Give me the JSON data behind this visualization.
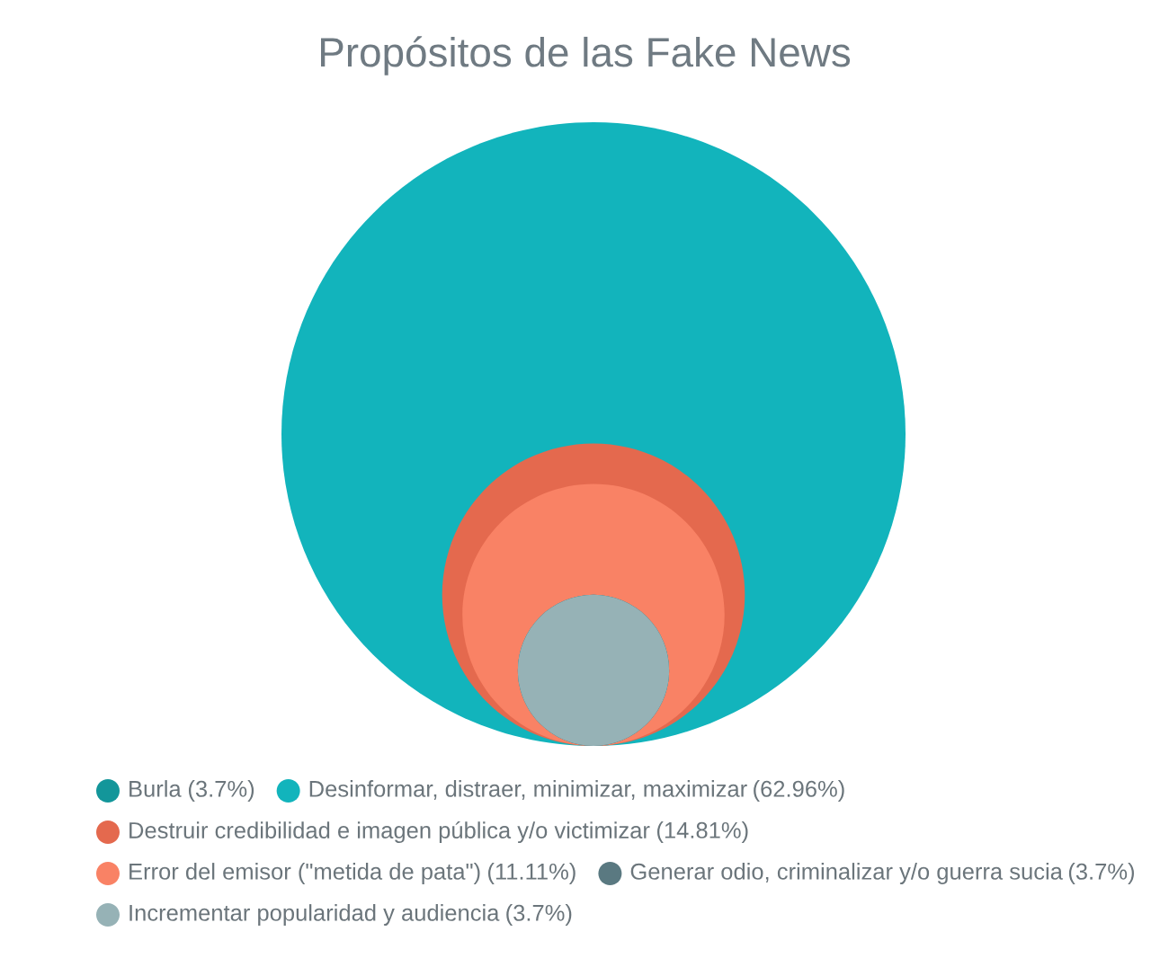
{
  "chart_data": {
    "type": "other",
    "title": "Propósitos de las Fake News",
    "series": [
      {
        "name": "Burla",
        "color": "#13969a",
        "values": [
          3.7
        ],
        "value_labels": [
          "(3.7%)"
        ]
      },
      {
        "name": "Desinformar, distraer, minimizar, maximizar",
        "color": "#12b4bc",
        "values": [
          62.96
        ],
        "value_labels": [
          "(62.96%)"
        ]
      },
      {
        "name": "Destruir credibilidad e imagen pública y/o victimizar",
        "color": "#e4694e",
        "values": [
          14.81
        ],
        "value_labels": [
          "(14.81%)"
        ]
      },
      {
        "name": "Error del emisor (\"metida de pata\")",
        "color": "#f98265",
        "values": [
          11.11
        ],
        "value_labels": [
          "(11.11%)"
        ]
      },
      {
        "name": "Generar odio, criminalizar y/o guerra sucia",
        "color": "#5a7981",
        "values": [
          3.7
        ],
        "value_labels": [
          "(3.7%)"
        ]
      },
      {
        "name": "Incrementar popularidad y audiencia",
        "color": "#96b2b6",
        "values": [
          3.7
        ],
        "value_labels": [
          "(3.7%)"
        ]
      }
    ],
    "legend": "bottom"
  }
}
